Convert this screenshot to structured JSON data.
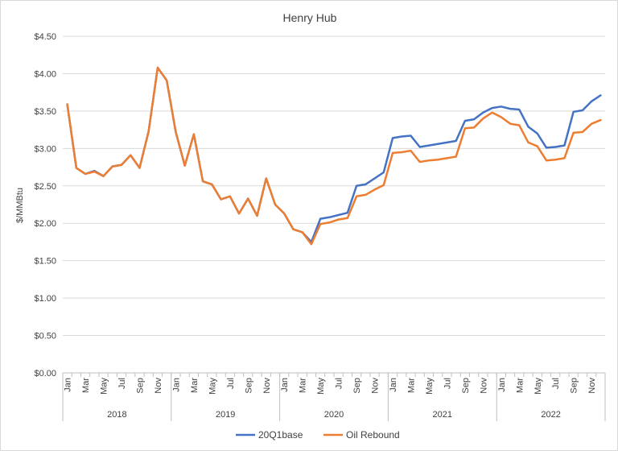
{
  "chart_data": {
    "type": "line",
    "title": "Henry Hub",
    "xlabel": "",
    "ylabel": "$/MMBtu",
    "ylim": [
      0,
      4.5
    ],
    "yticks": [
      "$0.00",
      "$0.50",
      "$1.00",
      "$1.50",
      "$2.00",
      "$2.50",
      "$3.00",
      "$3.50",
      "$4.00",
      "$4.50"
    ],
    "grid": true,
    "legend": "bottom",
    "years": [
      "2018",
      "2019",
      "2020",
      "2021",
      "2022"
    ],
    "month_labels": [
      "Jan",
      "Mar",
      "May",
      "Jul",
      "Sep",
      "Nov"
    ],
    "series": [
      {
        "name": "20Q1base",
        "color": "#4472C4",
        "values": [
          3.59,
          2.74,
          2.66,
          2.7,
          2.63,
          2.76,
          2.78,
          2.91,
          2.74,
          3.23,
          4.08,
          3.91,
          3.22,
          2.77,
          3.19,
          2.56,
          2.52,
          2.32,
          2.36,
          2.13,
          2.33,
          2.1,
          2.6,
          2.25,
          2.13,
          1.92,
          1.88,
          1.75,
          2.06,
          2.08,
          2.11,
          2.14,
          2.5,
          2.52,
          2.6,
          2.68,
          3.14,
          3.16,
          3.17,
          3.02,
          3.04,
          3.06,
          3.08,
          3.1,
          3.37,
          3.39,
          3.48,
          3.54,
          3.56,
          3.53,
          3.52,
          3.29,
          3.2,
          3.01,
          3.02,
          3.04,
          3.49,
          3.51,
          3.63,
          3.71
        ]
      },
      {
        "name": "Oil Rebound",
        "color": "#ED7D31",
        "values": [
          3.59,
          2.74,
          2.66,
          2.69,
          2.63,
          2.76,
          2.78,
          2.91,
          2.74,
          3.23,
          4.08,
          3.91,
          3.22,
          2.77,
          3.19,
          2.56,
          2.52,
          2.32,
          2.36,
          2.13,
          2.33,
          2.1,
          2.6,
          2.25,
          2.13,
          1.92,
          1.88,
          1.72,
          1.99,
          2.01,
          2.05,
          2.07,
          2.36,
          2.38,
          2.45,
          2.51,
          2.94,
          2.95,
          2.97,
          2.82,
          2.84,
          2.85,
          2.87,
          2.89,
          3.27,
          3.28,
          3.4,
          3.48,
          3.42,
          3.33,
          3.31,
          3.08,
          3.03,
          2.84,
          2.85,
          2.87,
          3.21,
          3.22,
          3.33,
          3.38
        ]
      }
    ]
  }
}
